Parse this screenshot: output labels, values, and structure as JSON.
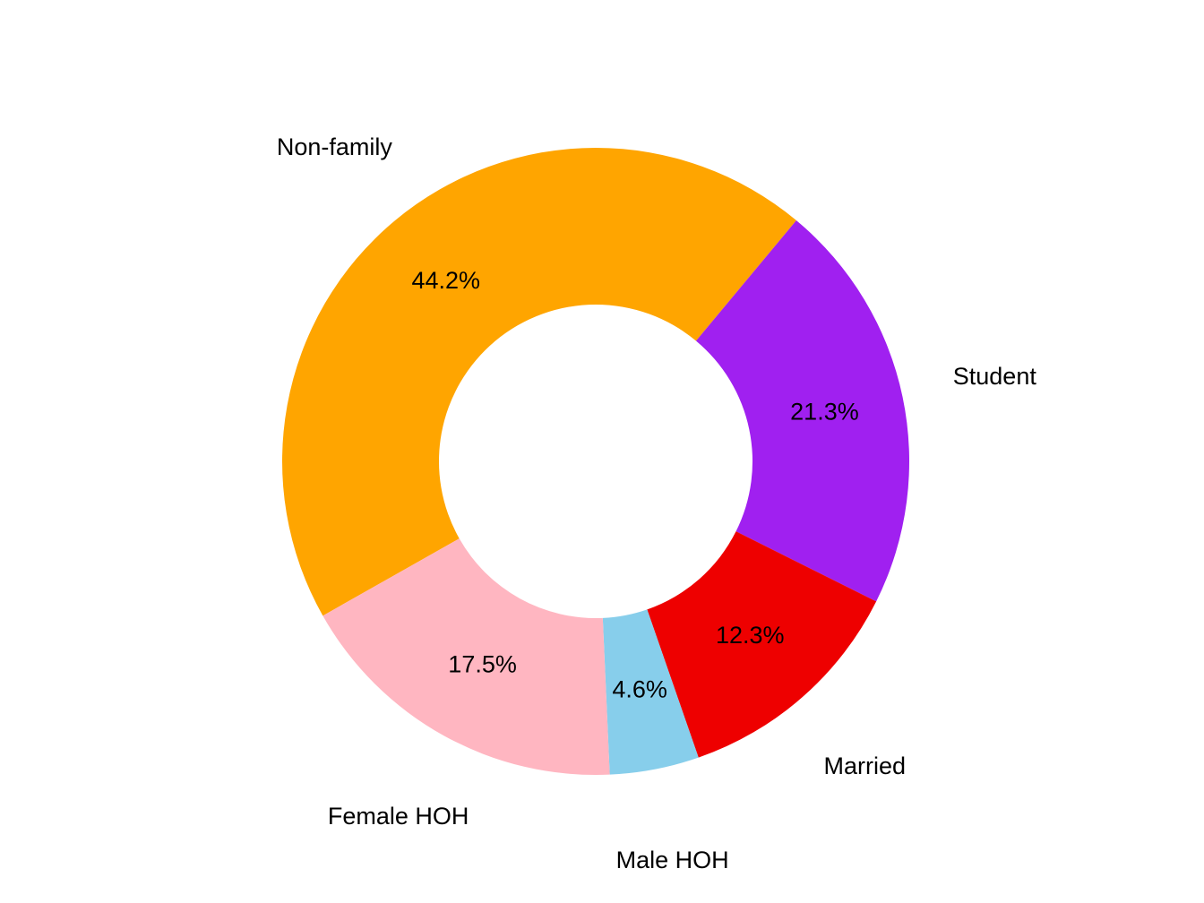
{
  "chart_data": {
    "type": "donut",
    "categories": [
      "Non-family",
      "Student",
      "Married",
      "Male HOH",
      "Female HOH"
    ],
    "values": [
      44.2,
      21.3,
      12.3,
      4.6,
      17.5
    ],
    "value_labels": [
      "44.2%",
      "21.3%",
      "12.3%",
      "4.6%",
      "17.5%"
    ],
    "colors": [
      "#FFA500",
      "#A020F0",
      "#EE0000",
      "#87CEEB",
      "#FFB6C1"
    ]
  }
}
